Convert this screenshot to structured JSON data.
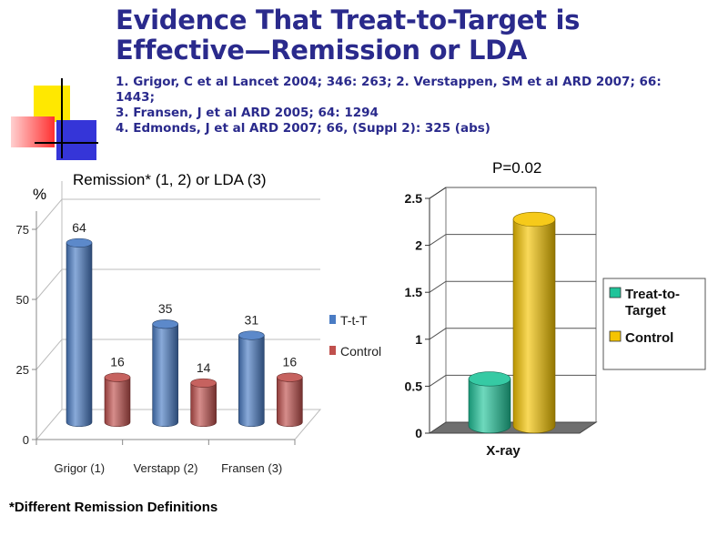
{
  "slide": {
    "title_line1": "Evidence That Treat-to-Target is",
    "title_line2": "Effective—Remission or LDA",
    "references": [
      "1. Grigor, C et al Lancet 2004; 346: 263;  2. Verstappen, SM et al ARD 2007; 66:",
      "1443;",
      "3.  Fransen, J et al ARD 2005; 64: 1294",
      "4. Edmonds, J et al ARD 2007; 66, (Suppl 2): 325 (abs)"
    ],
    "footnote": "*Different Remission Definitions",
    "colors": {
      "title": "#2a2a8c",
      "deco_yellow": "#ffe800",
      "deco_red": "#ff3030",
      "deco_blue": "#3535d8"
    }
  },
  "chart_data": [
    {
      "type": "bar",
      "title": "Remission* (1, 2) or LDA (3)",
      "ylabel": "%",
      "xlabel": "",
      "categories": [
        "Grigor (1)",
        "Verstapp (2)",
        "Fransen (3)"
      ],
      "series": [
        {
          "name": "T-t-T",
          "values": [
            64,
            35,
            31
          ],
          "color": "#4a7cc4"
        },
        {
          "name": "Control",
          "values": [
            16,
            14,
            16
          ],
          "color": "#c0504d"
        }
      ],
      "ylim": [
        0,
        75
      ],
      "yticks": [
        0,
        25,
        50,
        75
      ],
      "data_labels": true,
      "grid": true,
      "legend": "right",
      "style": "3d-cylinder"
    },
    {
      "type": "bar",
      "title": "P=0.02",
      "xlabel": "",
      "ylabel": "",
      "categories": [
        "X-ray"
      ],
      "series": [
        {
          "name": "Treat-to-Target",
          "values": [
            0.5
          ],
          "color": "#20c49a"
        },
        {
          "name": "Control",
          "values": [
            2.2
          ],
          "color": "#f5c400"
        }
      ],
      "ylim": [
        0,
        2.5
      ],
      "yticks": [
        0,
        0.5,
        1,
        1.5,
        2,
        2.5
      ],
      "ytick_labels": [
        "0",
        "0.5",
        "1",
        "1.5",
        "2",
        "2.5"
      ],
      "data_labels": false,
      "grid": true,
      "legend": "right",
      "style": "3d-cylinder"
    }
  ]
}
